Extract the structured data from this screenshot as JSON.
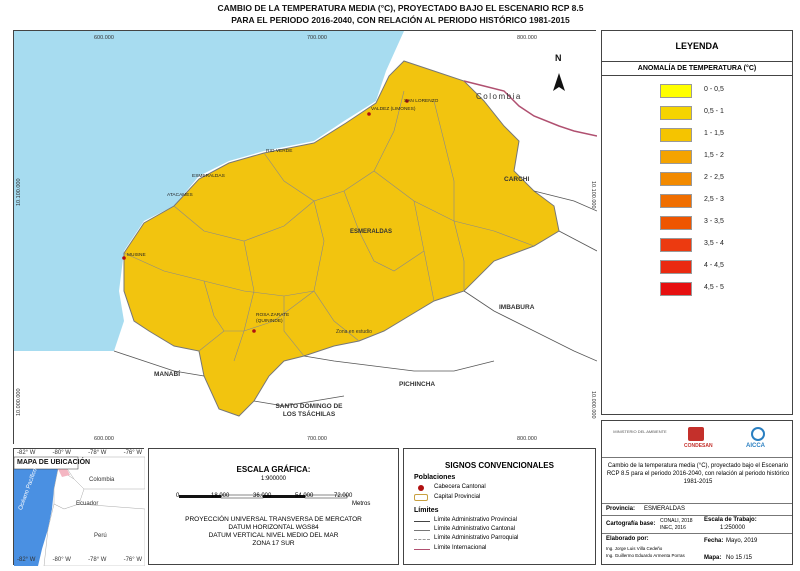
{
  "title": {
    "line1": "CAMBIO DE LA TEMPERATURA MEDIA (°C),  PROYECTADO BAJO EL ESCENARIO RCP 8.5",
    "line2": "PARA EL PERIODO 2016-2040, CON RELACIÓN AL PERIODO HISTÓRICO 1981-2015"
  },
  "map": {
    "coords_top": [
      "600.000",
      "700.000",
      "800.000"
    ],
    "coords_bottom": [
      "600.000",
      "700.000",
      "800.000"
    ],
    "coords_left": [
      "10.100.000",
      "10.000.000"
    ],
    "coords_right": [
      "10.100.000",
      "10.000.000"
    ],
    "north": "N",
    "regions": {
      "colombia": "Colombia",
      "carchi": "CARCHI",
      "imbabura": "IMBABURA",
      "pichincha": "PICHINCHA",
      "manabi": "MANABÍ",
      "santo_domingo": "SANTO DOMINGO DE LOS TSÁCHILAS",
      "esmeraldas_prov": "ESMERALDAS",
      "zona": "Zona en estudio"
    },
    "cities": {
      "san_lorenzo": "SAN LORENZO",
      "valdez": "VALDEZ (LIMONES)",
      "rio_verde": "RIO VERDE",
      "esmeraldas": "ESMERALDAS",
      "atacames": "ATACAMES",
      "muisne": "MUISNE",
      "rosa_zarate": "ROSA ZARATE (QUININDE)"
    },
    "colors": {
      "ocean": "#a7dcf0",
      "province": "#f1c40f",
      "neighbor": "#ffffff",
      "boundary": "#8a8a8a",
      "international": "#b05070"
    }
  },
  "legend": {
    "title": "LEYENDA",
    "subtitle": "ANOMALÍA DE TEMPERATURA (°C)",
    "items": [
      {
        "label": "0 - 0,5",
        "color": "#ffff00"
      },
      {
        "label": "0,5 - 1",
        "color": "#f5d400"
      },
      {
        "label": "1 - 1,5",
        "color": "#f5c400"
      },
      {
        "label": "1,5 - 2",
        "color": "#f4a300"
      },
      {
        "label": "2 - 2,5",
        "color": "#f28a00"
      },
      {
        "label": "2,5 - 3",
        "color": "#f06e00"
      },
      {
        "label": "3 - 3,5",
        "color": "#ee5500"
      },
      {
        "label": "3,5 - 4",
        "color": "#ec3a10"
      },
      {
        "label": "4 - 4,5",
        "color": "#ea2a10"
      },
      {
        "label": "4,5 - 5",
        "color": "#e61010"
      }
    ]
  },
  "inset": {
    "title": "MAPA DE UBICACIÓN",
    "coords_top": [
      "-82° W",
      "-80° W",
      "-78° W",
      "-76° W"
    ],
    "coords_bottom": [
      "-82° W",
      "-80° W",
      "-78° W",
      "-76° W"
    ],
    "labels": {
      "colombia": "Colombia",
      "ecuador": "Ecuador",
      "peru": "Perú",
      "ocean": "Océano Pacífico"
    }
  },
  "scale": {
    "title": "ESCALA GRÁFICA:",
    "ratio": "1:900000",
    "ticks": [
      "0",
      "18.000",
      "36.000",
      "54.000",
      "72.000"
    ],
    "unit": "Metros",
    "projection": [
      "PROYECCIÓN UNIVERSAL TRANSVERSA DE MERCATOR",
      "DATUM HORIZONTAL WGS84",
      "DATUM VERTICAL NIVEL MEDIO DEL MAR",
      "ZONA 17 SUR"
    ]
  },
  "signs": {
    "title": "SIGNOS CONVENCIONALES",
    "poblaciones": "Poblaciones",
    "cabecera": "Cabecera Cantonal",
    "capital": "Capital Provincial",
    "limites": "Límites",
    "prov": "Límite Administrativo Provincial",
    "cant": "Límite Administrativo Cantonal",
    "parr": "Límite Administrativo Parroquial",
    "intl": "Límite Internacional"
  },
  "info": {
    "logos": [
      "MINISTERIO DEL AMBIENTE",
      "CONDESAN",
      "AICCA"
    ],
    "description": "Cambio de la temperatura media (°C),  proyectado bajo el Escenario RCP 8.5 para el periodo 2016-2040, con relación al periodo histórico 1981-2015",
    "provincia_label": "Provincia:",
    "provincia": "ESMERALDAS",
    "cartografia_label": "Cartografía base:",
    "cartografia": "CONALI, 2018 INEC, 2016",
    "escala_label": "Escala de Trabajo:",
    "escala": "1:250000",
    "elaborado_label": "Elaborado por:",
    "elaborado1": "Ing. Jorge Luis Villa Cedeño",
    "elaborado2": "Ing. Guillermo Eduardo Armenta Porras",
    "fecha_label": "Fecha:",
    "fecha": "Mayo, 2019",
    "mapa_label": "Mapa:",
    "mapa": "No 15 /15"
  }
}
